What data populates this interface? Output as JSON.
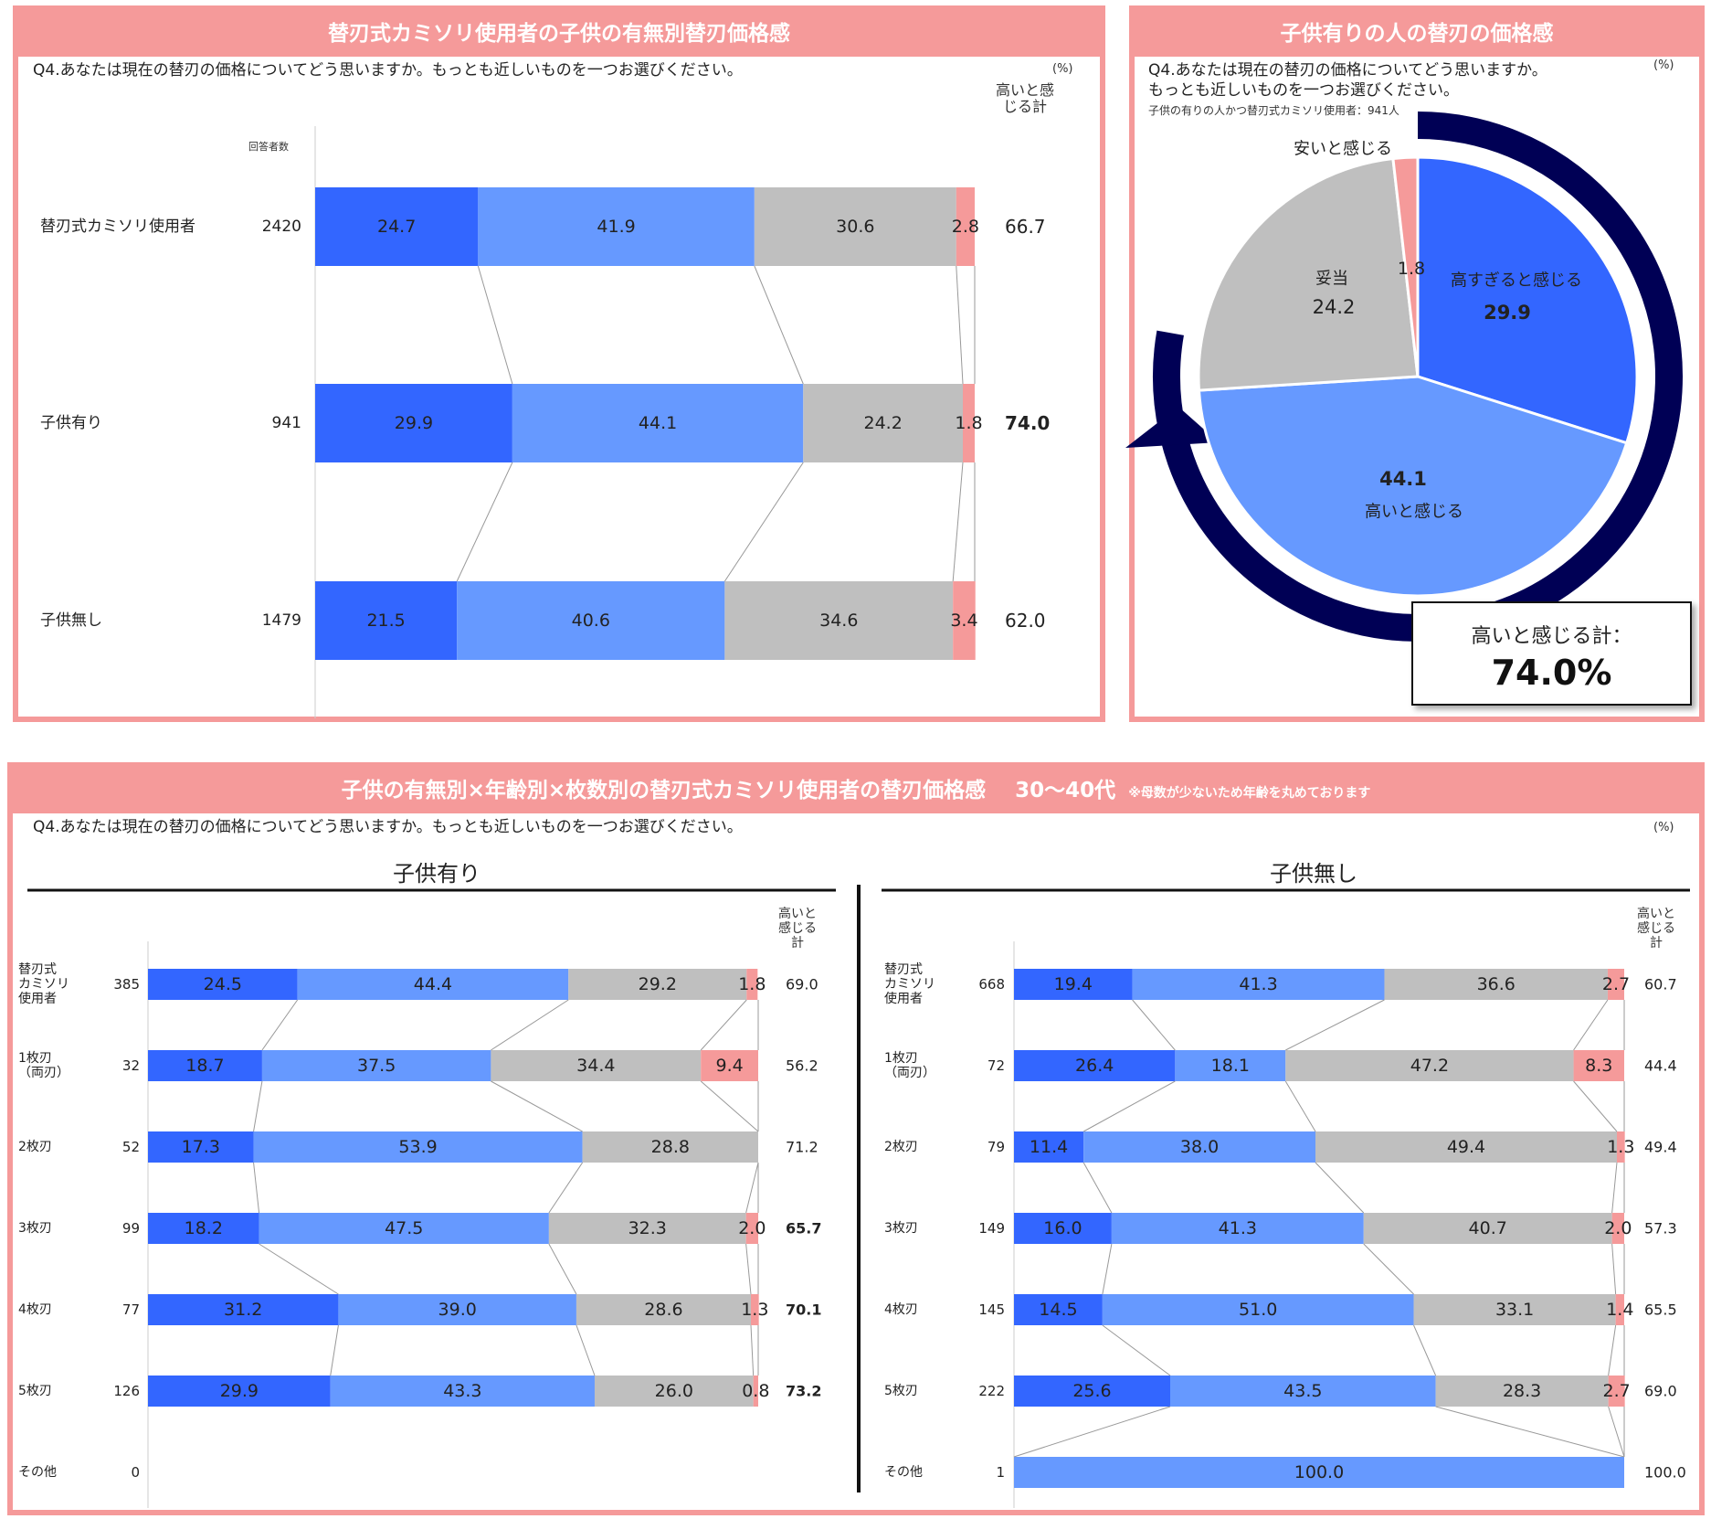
{
  "panel1": {
    "title": "替刃式カミソリ使用者の子供の有無別替刃価格感",
    "question": "Q4.あなたは現在の替刃の価格についてどう思いますか。もっとも近しいものを一つお選びください。",
    "unit": "(%)",
    "n_header": "回答者数",
    "total_header": "高いと感じる計"
  },
  "panel2": {
    "title": "子供有りの人の替刃の価格感",
    "question_line1": "Q4.あなたは現在の替刃の価格についてどう思いますか。",
    "question_line2": "もっとも近しいものを一つお選びください。",
    "unit": "(%)",
    "base": "子供の有りの人かつ替刃式カミソリ使用者：941人",
    "callout_label": "高いと感じる計：",
    "callout_value": "74.0%"
  },
  "panel3": {
    "title": "子供の有無別×年齢別×枚数別の替刃式カミソリ使用者の替刃価格感",
    "title_suffix": "30～40代",
    "title_note": "※母数が少ないため年齢を丸めております",
    "question": "Q4.あなたは現在の替刃の価格についてどう思いますか。もっとも近しいものを一つお選びください。",
    "unit": "(%)",
    "left_header": "子供有り",
    "right_header": "子供無し",
    "total_header": "高いと感じる計"
  },
  "colors": {
    "too_high": "#3366ff",
    "high": "#6699ff",
    "fair": "#bfbfbf",
    "cheap": "#f59a9a",
    "arrow": "#000055",
    "frame": "#f59a9a"
  },
  "chart_data": [
    {
      "type": "bar",
      "stacked": "100%",
      "orientation": "horizontal",
      "title": "替刃式カミソリ使用者の子供の有無別替刃価格感",
      "categories": [
        "替刃式カミソリ使用者",
        "子供有り",
        "子供無し"
      ],
      "n": [
        "2420",
        "941",
        "1479"
      ],
      "series": [
        {
          "name": "高すぎると感じる",
          "values": [
            24.7,
            29.9,
            21.5
          ]
        },
        {
          "name": "高いと感じる",
          "values": [
            41.9,
            44.1,
            40.6
          ]
        },
        {
          "name": "妥当",
          "values": [
            30.6,
            24.2,
            34.6
          ]
        },
        {
          "name": "安いと感じる",
          "values": [
            2.8,
            1.8,
            3.4
          ]
        }
      ],
      "totals": [
        "66.7",
        "74.0",
        "62.0"
      ],
      "bold_totals": [
        false,
        true,
        false
      ],
      "xlim": [
        0,
        100
      ]
    },
    {
      "type": "pie",
      "title": "子供有りの人の替刃の価格感",
      "labels": [
        "高すぎると感じる",
        "高いと感じる",
        "妥当",
        "安いと感じる"
      ],
      "values": [
        29.9,
        44.1,
        24.2,
        1.8
      ],
      "value_labels": [
        "29.9",
        "44.1",
        "24.2",
        "1.8"
      ]
    },
    {
      "type": "bar",
      "stacked": "100%",
      "orientation": "horizontal",
      "title": "子供有り",
      "categories": [
        "替刃式カミソリ使用者",
        "1枚刃（両刃）",
        "2枚刃",
        "3枚刃",
        "4枚刃",
        "5枚刃",
        "その他"
      ],
      "n": [
        "385",
        "32",
        "52",
        "99",
        "77",
        "126",
        "0"
      ],
      "series": [
        {
          "name": "高すぎると感じる",
          "values": [
            24.5,
            18.7,
            17.3,
            18.2,
            31.2,
            29.9,
            0
          ]
        },
        {
          "name": "高いと感じる",
          "values": [
            44.4,
            37.5,
            53.9,
            47.5,
            39.0,
            43.3,
            0
          ]
        },
        {
          "name": "妥当",
          "values": [
            29.2,
            34.4,
            28.8,
            32.3,
            28.6,
            26.0,
            0
          ]
        },
        {
          "name": "安いと感じる",
          "values": [
            1.8,
            9.4,
            0,
            2.0,
            1.3,
            0.8,
            0
          ]
        }
      ],
      "totals": [
        "69.0",
        "56.2",
        "71.2",
        "65.7",
        "70.1",
        "73.2",
        ""
      ],
      "bold_totals": [
        false,
        false,
        false,
        true,
        true,
        true,
        false
      ]
    },
    {
      "type": "bar",
      "stacked": "100%",
      "orientation": "horizontal",
      "title": "子供無し",
      "categories": [
        "替刃式カミソリ使用者",
        "1枚刃（両刃）",
        "2枚刃",
        "3枚刃",
        "4枚刃",
        "5枚刃",
        "その他"
      ],
      "n": [
        "668",
        "72",
        "79",
        "149",
        "145",
        "222",
        "1"
      ],
      "series": [
        {
          "name": "高すぎると感じる",
          "values": [
            19.4,
            26.4,
            11.4,
            16.0,
            14.5,
            25.6,
            0
          ]
        },
        {
          "name": "高いと感じる",
          "values": [
            41.3,
            18.1,
            38.0,
            41.3,
            51.0,
            43.5,
            100.0
          ]
        },
        {
          "name": "妥当",
          "values": [
            36.6,
            47.2,
            49.4,
            40.7,
            33.1,
            28.3,
            0
          ]
        },
        {
          "name": "安いと感じる",
          "values": [
            2.7,
            8.3,
            1.3,
            2.0,
            1.4,
            2.7,
            0
          ]
        }
      ],
      "totals": [
        "60.7",
        "44.4",
        "49.4",
        "57.3",
        "65.5",
        "69.0",
        "100.0"
      ],
      "bold_totals": [
        false,
        false,
        false,
        false,
        false,
        false,
        false
      ]
    }
  ]
}
